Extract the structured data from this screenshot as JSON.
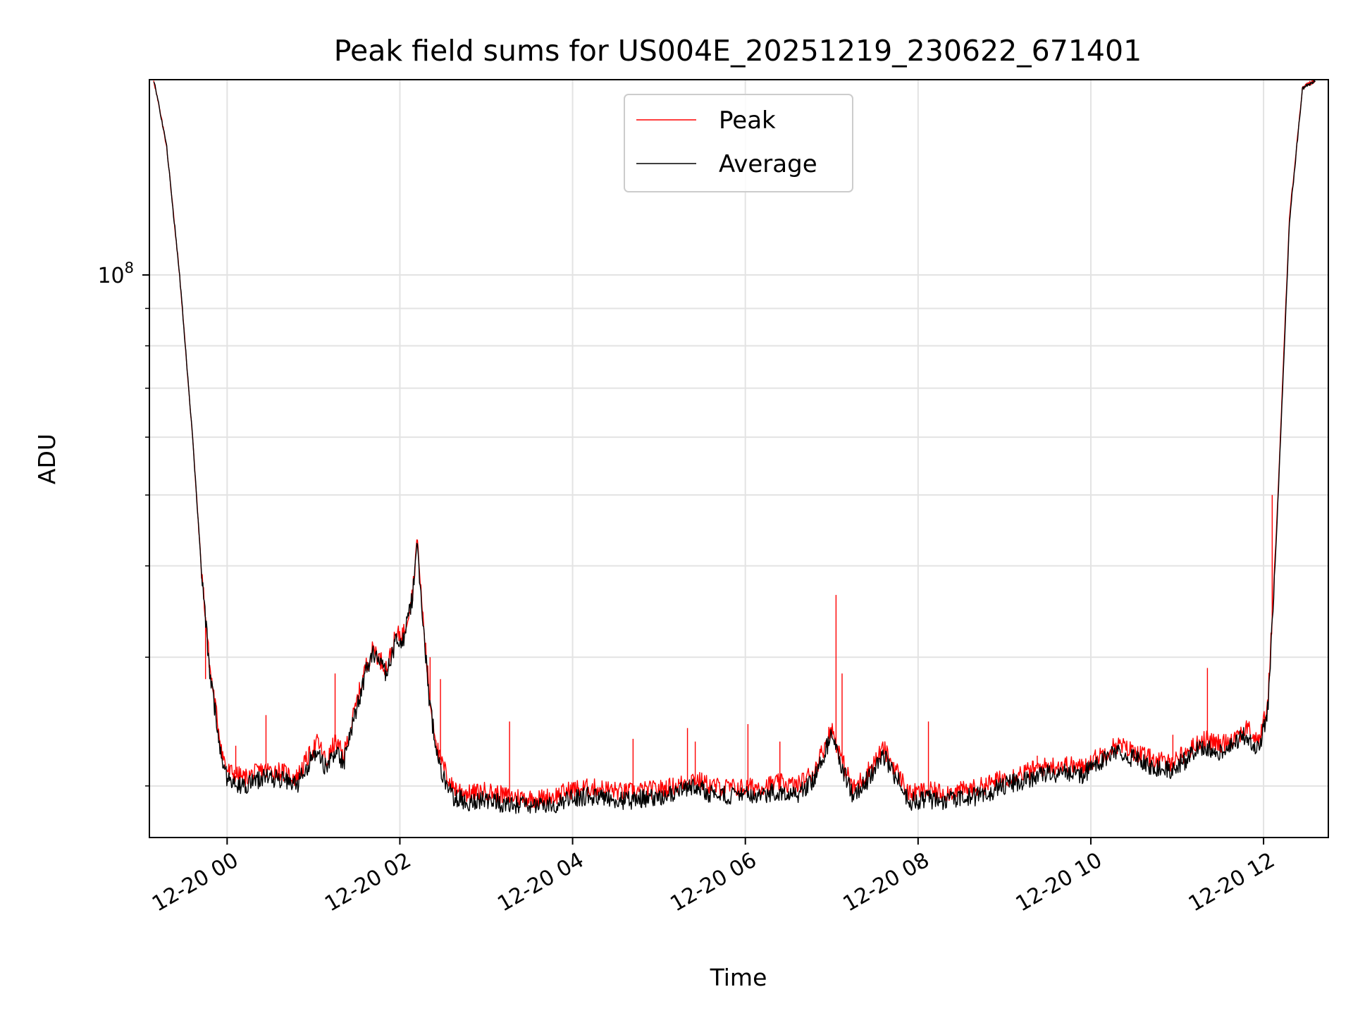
{
  "chart_data": {
    "type": "line",
    "title": "Peak field sums for US004E_20251219_230622_671401",
    "xlabel": "Time",
    "ylabel": "ADU",
    "yscale": "log",
    "x_tick_labels": [
      "12-20 00",
      "12-20 02",
      "12-20 04",
      "12-20 06",
      "12-20 08",
      "12-20 10",
      "12-20 12"
    ],
    "x_tick_hours": [
      0,
      2,
      4,
      6,
      8,
      10,
      12
    ],
    "x_unit_note": "hours from 12-20 00:00",
    "xlim_hours": [
      -0.9,
      12.75
    ],
    "y_tick_labels": [
      {
        "base": "10",
        "exp": "8",
        "value": 100000000
      }
    ],
    "ylim": [
      17000000,
      185000000
    ],
    "grid": true,
    "legend_position": "top-center",
    "series": [
      {
        "name": "Peak",
        "color": "#ff0000",
        "points": [
          [
            -0.85,
            185000000
          ],
          [
            -0.7,
            150000000
          ],
          [
            -0.55,
            100000000
          ],
          [
            -0.4,
            60000000
          ],
          [
            -0.3,
            40000000
          ],
          [
            -0.2,
            29000000
          ],
          [
            -0.1,
            24000000
          ],
          [
            -0.05,
            22000000
          ],
          [
            0.0,
            21000000
          ],
          [
            0.2,
            20500000
          ],
          [
            0.4,
            21000000
          ],
          [
            0.6,
            21000000
          ],
          [
            0.8,
            20500000
          ],
          [
            0.9,
            21500000
          ],
          [
            1.0,
            22500000
          ],
          [
            1.05,
            23000000
          ],
          [
            1.15,
            21500000
          ],
          [
            1.25,
            23000000
          ],
          [
            1.35,
            22000000
          ],
          [
            1.5,
            26000000
          ],
          [
            1.6,
            29000000
          ],
          [
            1.7,
            31000000
          ],
          [
            1.75,
            30000000
          ],
          [
            1.85,
            29000000
          ],
          [
            1.95,
            32000000
          ],
          [
            2.05,
            32500000
          ],
          [
            2.15,
            37000000
          ],
          [
            2.2,
            44000000
          ],
          [
            2.25,
            36000000
          ],
          [
            2.35,
            26000000
          ],
          [
            2.45,
            22000000
          ],
          [
            2.6,
            20000000
          ],
          [
            2.8,
            19500000
          ],
          [
            3.0,
            19700000
          ],
          [
            3.2,
            19400000
          ],
          [
            3.4,
            19300000
          ],
          [
            3.6,
            19200000
          ],
          [
            3.8,
            19400000
          ],
          [
            4.0,
            19800000
          ],
          [
            4.2,
            19900000
          ],
          [
            4.4,
            19800000
          ],
          [
            4.6,
            19600000
          ],
          [
            4.8,
            19700000
          ],
          [
            5.0,
            19800000
          ],
          [
            5.2,
            20000000
          ],
          [
            5.4,
            20500000
          ],
          [
            5.6,
            20000000
          ],
          [
            5.8,
            19900000
          ],
          [
            6.0,
            19900000
          ],
          [
            6.2,
            20000000
          ],
          [
            6.4,
            20200000
          ],
          [
            6.6,
            20000000
          ],
          [
            6.8,
            21000000
          ],
          [
            7.0,
            24000000
          ],
          [
            7.1,
            22000000
          ],
          [
            7.25,
            19800000
          ],
          [
            7.4,
            20800000
          ],
          [
            7.6,
            22500000
          ],
          [
            7.75,
            21000000
          ],
          [
            7.9,
            19500000
          ],
          [
            8.1,
            19700000
          ],
          [
            8.3,
            19600000
          ],
          [
            8.5,
            19700000
          ],
          [
            8.7,
            19900000
          ],
          [
            8.9,
            20300000
          ],
          [
            9.1,
            20700000
          ],
          [
            9.3,
            21000000
          ],
          [
            9.5,
            21300000
          ],
          [
            9.7,
            21400000
          ],
          [
            9.9,
            21200000
          ],
          [
            10.1,
            22000000
          ],
          [
            10.3,
            22800000
          ],
          [
            10.5,
            22300000
          ],
          [
            10.7,
            21800000
          ],
          [
            10.9,
            21500000
          ],
          [
            11.1,
            22200000
          ],
          [
            11.3,
            23200000
          ],
          [
            11.5,
            22800000
          ],
          [
            11.7,
            23500000
          ],
          [
            11.8,
            24000000
          ],
          [
            11.95,
            23000000
          ],
          [
            12.05,
            26000000
          ],
          [
            12.15,
            45000000
          ],
          [
            12.3,
            120000000
          ],
          [
            12.45,
            180000000
          ],
          [
            12.6,
            185000000
          ]
        ],
        "spikes": [
          [
            -0.25,
            28000000
          ],
          [
            0.1,
            22700000
          ],
          [
            0.45,
            25000000
          ],
          [
            1.25,
            28500000
          ],
          [
            2.35,
            30000000
          ],
          [
            2.47,
            28000000
          ],
          [
            3.27,
            24500000
          ],
          [
            4.7,
            23200000
          ],
          [
            5.33,
            24000000
          ],
          [
            5.42,
            23000000
          ],
          [
            6.03,
            24300000
          ],
          [
            6.4,
            23000000
          ],
          [
            7.05,
            36500000
          ],
          [
            7.12,
            28500000
          ],
          [
            8.12,
            24500000
          ],
          [
            9.38,
            22000000
          ],
          [
            10.95,
            23500000
          ],
          [
            11.35,
            29000000
          ],
          [
            12.1,
            50000000
          ]
        ]
      },
      {
        "name": "Average",
        "color": "#000000",
        "points": [
          [
            -0.85,
            185000000
          ],
          [
            -0.7,
            150000000
          ],
          [
            -0.55,
            100000000
          ],
          [
            -0.4,
            60000000
          ],
          [
            -0.3,
            40000000
          ],
          [
            -0.2,
            28500000
          ],
          [
            -0.1,
            23500000
          ],
          [
            -0.05,
            21500000
          ],
          [
            0.0,
            20500000
          ],
          [
            0.2,
            20000000
          ],
          [
            0.4,
            20500000
          ],
          [
            0.6,
            20500000
          ],
          [
            0.8,
            20000000
          ],
          [
            0.9,
            21000000
          ],
          [
            1.0,
            22000000
          ],
          [
            1.05,
            22500000
          ],
          [
            1.15,
            21000000
          ],
          [
            1.25,
            22500000
          ],
          [
            1.35,
            21500000
          ],
          [
            1.5,
            25500000
          ],
          [
            1.6,
            28500000
          ],
          [
            1.7,
            30500000
          ],
          [
            1.75,
            29500000
          ],
          [
            1.85,
            28500000
          ],
          [
            1.95,
            31500000
          ],
          [
            2.05,
            32000000
          ],
          [
            2.15,
            36500000
          ],
          [
            2.2,
            43500000
          ],
          [
            2.25,
            35500000
          ],
          [
            2.35,
            25500000
          ],
          [
            2.45,
            21500000
          ],
          [
            2.6,
            19400000
          ],
          [
            2.8,
            19000000
          ],
          [
            3.0,
            19200000
          ],
          [
            3.2,
            18900000
          ],
          [
            3.4,
            18800000
          ],
          [
            3.6,
            18700000
          ],
          [
            3.8,
            18900000
          ],
          [
            4.0,
            19300000
          ],
          [
            4.2,
            19400000
          ],
          [
            4.4,
            19300000
          ],
          [
            4.6,
            19100000
          ],
          [
            4.8,
            19200000
          ],
          [
            5.0,
            19300000
          ],
          [
            5.2,
            19500000
          ],
          [
            5.4,
            20000000
          ],
          [
            5.6,
            19500000
          ],
          [
            5.8,
            19400000
          ],
          [
            6.0,
            19400000
          ],
          [
            6.2,
            19500000
          ],
          [
            6.4,
            19700000
          ],
          [
            6.6,
            19500000
          ],
          [
            6.8,
            20500000
          ],
          [
            7.0,
            23500000
          ],
          [
            7.1,
            21500000
          ],
          [
            7.25,
            19300000
          ],
          [
            7.4,
            20300000
          ],
          [
            7.6,
            22000000
          ],
          [
            7.75,
            20500000
          ],
          [
            7.9,
            19000000
          ],
          [
            8.1,
            19200000
          ],
          [
            8.3,
            19100000
          ],
          [
            8.5,
            19200000
          ],
          [
            8.7,
            19400000
          ],
          [
            8.9,
            19800000
          ],
          [
            9.1,
            20200000
          ],
          [
            9.3,
            20500000
          ],
          [
            9.5,
            20800000
          ],
          [
            9.7,
            20900000
          ],
          [
            9.9,
            20700000
          ],
          [
            10.1,
            21500000
          ],
          [
            10.3,
            22300000
          ],
          [
            10.5,
            21800000
          ],
          [
            10.7,
            21300000
          ],
          [
            10.9,
            21000000
          ],
          [
            11.1,
            21700000
          ],
          [
            11.3,
            22700000
          ],
          [
            11.5,
            22300000
          ],
          [
            11.7,
            23000000
          ],
          [
            11.8,
            23500000
          ],
          [
            11.95,
            22500000
          ],
          [
            12.05,
            25500000
          ],
          [
            12.15,
            44000000
          ],
          [
            12.3,
            118000000
          ],
          [
            12.45,
            180000000
          ],
          [
            12.6,
            185000000
          ]
        ]
      }
    ]
  }
}
